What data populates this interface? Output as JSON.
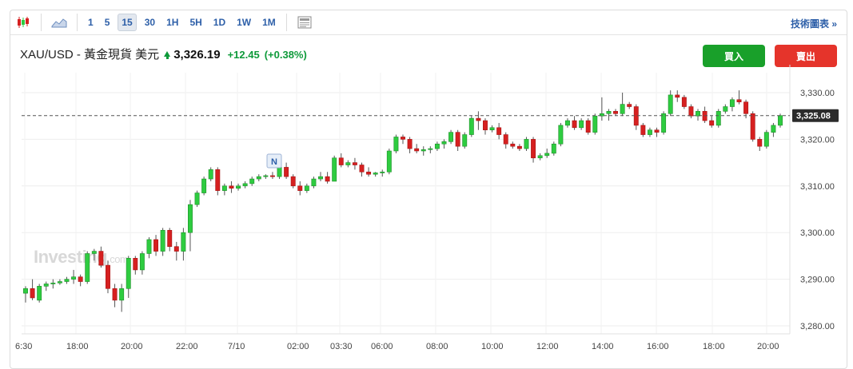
{
  "toolbar": {
    "icons": [
      "candlestick-icon",
      "area-chart-icon",
      "news-panel-icon"
    ],
    "timeframes": [
      "1",
      "5",
      "15",
      "30",
      "1H",
      "5H",
      "1D",
      "1W",
      "1M"
    ],
    "active_timeframe": "15",
    "tech_link": "技術圖表 »"
  },
  "quote": {
    "name": "XAU/USD - 黃金現貨 美元",
    "direction_icon": "up-arrow-icon",
    "price": "3,326.19",
    "change": "+12.45",
    "change_pct": "(+0.38%)",
    "color_up": "#0e9a3a"
  },
  "buttons": {
    "buy": "買入",
    "sell": "賣出"
  },
  "watermark": {
    "brand": "Investing",
    "suffix": ".com"
  },
  "event_marker": "N",
  "chart_data": {
    "type": "candlestick",
    "y_ticks": [
      "3,330.00",
      "3,320.00",
      "3,310.00",
      "3,300.00",
      "3,290.00",
      "3,280.00"
    ],
    "x_ticks": [
      "6:30",
      "18:00",
      "20:00",
      "22:00",
      "7/10",
      "02:00",
      "03:30",
      "06:00",
      "08:00",
      "10:00",
      "12:00",
      "14:00",
      "16:00",
      "18:00",
      "20:00"
    ],
    "ylim": [
      3278,
      3335
    ],
    "current_price_label": "3,325.08",
    "current_price": 3325.08,
    "grid": true,
    "colors": {
      "up": "#2ecc40",
      "down": "#d62020"
    },
    "candles": [
      [
        3287.0,
        3288.5,
        3285.0,
        3288.0
      ],
      [
        3288.0,
        3290.0,
        3285.5,
        3286.0
      ],
      [
        3285.5,
        3289.0,
        3285.0,
        3288.5
      ],
      [
        3288.5,
        3289.5,
        3287.5,
        3289.0
      ],
      [
        3289.0,
        3290.0,
        3288.0,
        3289.2
      ],
      [
        3289.2,
        3290.0,
        3288.8,
        3289.5
      ],
      [
        3289.5,
        3290.5,
        3289.0,
        3290.0
      ],
      [
        3290.0,
        3292.0,
        3289.0,
        3290.5
      ],
      [
        3290.5,
        3291.0,
        3288.5,
        3289.5
      ],
      [
        3289.5,
        3296.0,
        3289.0,
        3295.5
      ],
      [
        3295.5,
        3296.5,
        3294.0,
        3296.0
      ],
      [
        3296.0,
        3297.0,
        3292.5,
        3293.0
      ],
      [
        3293.0,
        3294.0,
        3287.0,
        3288.0
      ],
      [
        3288.0,
        3289.0,
        3284.0,
        3285.5
      ],
      [
        3285.5,
        3289.0,
        3283.0,
        3288.0
      ],
      [
        3288.0,
        3295.0,
        3286.0,
        3294.5
      ],
      [
        3294.5,
        3295.0,
        3291.0,
        3292.0
      ],
      [
        3292.0,
        3296.0,
        3291.0,
        3295.5
      ],
      [
        3295.5,
        3299.0,
        3294.5,
        3298.5
      ],
      [
        3298.5,
        3299.5,
        3295.0,
        3296.0
      ],
      [
        3296.0,
        3301.0,
        3295.0,
        3300.5
      ],
      [
        3300.5,
        3301.0,
        3296.0,
        3297.0
      ],
      [
        3297.0,
        3298.0,
        3294.0,
        3296.0
      ],
      [
        3296.0,
        3301.0,
        3294.0,
        3300.0
      ],
      [
        3300.0,
        3307.0,
        3296.0,
        3306.0
      ],
      [
        3306.0,
        3309.0,
        3305.5,
        3308.5
      ],
      [
        3308.5,
        3312.0,
        3308.0,
        3311.5
      ],
      [
        3311.5,
        3314.0,
        3311.0,
        3313.5
      ],
      [
        3313.5,
        3314.0,
        3308.0,
        3309.0
      ],
      [
        3309.0,
        3310.5,
        3308.0,
        3310.0
      ],
      [
        3310.0,
        3311.0,
        3308.5,
        3309.5
      ],
      [
        3309.5,
        3310.5,
        3309.0,
        3310.0
      ],
      [
        3310.0,
        3311.0,
        3309.5,
        3310.5
      ],
      [
        3310.5,
        3312.0,
        3310.0,
        3311.5
      ],
      [
        3311.5,
        3312.5,
        3311.0,
        3312.0
      ],
      [
        3312.0,
        3312.5,
        3311.5,
        3312.2
      ],
      [
        3312.2,
        3313.0,
        3311.5,
        3312.0
      ],
      [
        3312.0,
        3314.5,
        3311.5,
        3314.0
      ],
      [
        3314.0,
        3315.0,
        3311.5,
        3312.0
      ],
      [
        3312.0,
        3312.5,
        3309.5,
        3310.0
      ],
      [
        3310.0,
        3311.0,
        3308.0,
        3309.0
      ],
      [
        3309.0,
        3310.5,
        3308.5,
        3310.0
      ],
      [
        3310.0,
        3312.0,
        3309.5,
        3311.5
      ],
      [
        3311.5,
        3313.0,
        3311.0,
        3312.0
      ],
      [
        3312.0,
        3313.0,
        3310.5,
        3311.0
      ],
      [
        3311.0,
        3316.5,
        3311.0,
        3316.0
      ],
      [
        3316.0,
        3317.0,
        3314.0,
        3314.5
      ],
      [
        3314.5,
        3315.5,
        3314.0,
        3315.0
      ],
      [
        3315.0,
        3316.0,
        3313.5,
        3314.5
      ],
      [
        3314.5,
        3315.0,
        3312.0,
        3313.0
      ],
      [
        3313.0,
        3314.0,
        3312.0,
        3312.5
      ],
      [
        3312.5,
        3313.0,
        3312.0,
        3312.8
      ],
      [
        3312.8,
        3313.5,
        3312.0,
        3313.0
      ],
      [
        3313.0,
        3318.0,
        3312.5,
        3317.5
      ],
      [
        3317.5,
        3321.0,
        3317.0,
        3320.5
      ],
      [
        3320.5,
        3321.0,
        3319.0,
        3320.0
      ],
      [
        3320.0,
        3320.5,
        3317.0,
        3318.0
      ],
      [
        3318.0,
        3319.0,
        3317.0,
        3317.5
      ],
      [
        3317.5,
        3318.5,
        3316.5,
        3317.8
      ],
      [
        3317.8,
        3318.5,
        3317.0,
        3318.0
      ],
      [
        3318.0,
        3319.5,
        3317.5,
        3319.0
      ],
      [
        3319.0,
        3320.0,
        3318.0,
        3319.5
      ],
      [
        3319.5,
        3322.0,
        3319.0,
        3321.5
      ],
      [
        3321.5,
        3322.0,
        3317.5,
        3318.5
      ],
      [
        3318.5,
        3321.5,
        3318.0,
        3321.0
      ],
      [
        3321.0,
        3325.0,
        3320.5,
        3324.5
      ],
      [
        3324.5,
        3326.0,
        3322.0,
        3324.0
      ],
      [
        3324.0,
        3324.5,
        3321.0,
        3322.0
      ],
      [
        3322.0,
        3323.0,
        3321.5,
        3322.5
      ],
      [
        3322.5,
        3323.5,
        3320.0,
        3321.0
      ],
      [
        3321.0,
        3321.5,
        3318.0,
        3319.0
      ],
      [
        3319.0,
        3319.5,
        3318.0,
        3318.5
      ],
      [
        3318.5,
        3319.0,
        3317.5,
        3318.0
      ],
      [
        3318.0,
        3320.5,
        3317.5,
        3320.0
      ],
      [
        3320.0,
        3320.5,
        3315.0,
        3316.0
      ],
      [
        3316.0,
        3317.0,
        3315.5,
        3316.5
      ],
      [
        3316.5,
        3318.0,
        3316.0,
        3317.0
      ],
      [
        3317.0,
        3319.5,
        3316.5,
        3319.0
      ],
      [
        3319.0,
        3323.5,
        3318.5,
        3323.0
      ],
      [
        3323.0,
        3324.5,
        3322.5,
        3324.0
      ],
      [
        3324.0,
        3325.0,
        3322.0,
        3322.5
      ],
      [
        3322.5,
        3324.5,
        3322.0,
        3324.0
      ],
      [
        3324.0,
        3324.5,
        3321.0,
        3321.5
      ],
      [
        3321.5,
        3325.5,
        3321.0,
        3325.0
      ],
      [
        3325.0,
        3329.0,
        3324.0,
        3325.5
      ],
      [
        3325.5,
        3326.5,
        3324.0,
        3326.0
      ],
      [
        3326.0,
        3326.5,
        3325.0,
        3325.5
      ],
      [
        3325.5,
        3330.0,
        3325.0,
        3327.5
      ],
      [
        3327.5,
        3328.0,
        3326.5,
        3327.0
      ],
      [
        3327.0,
        3327.5,
        3322.0,
        3323.0
      ],
      [
        3323.0,
        3323.5,
        3320.5,
        3321.0
      ],
      [
        3321.0,
        3322.5,
        3320.5,
        3322.0
      ],
      [
        3322.0,
        3322.5,
        3320.5,
        3321.5
      ],
      [
        3321.5,
        3326.0,
        3321.0,
        3325.5
      ],
      [
        3325.5,
        3330.5,
        3325.0,
        3329.5
      ],
      [
        3329.5,
        3330.5,
        3328.0,
        3329.0
      ],
      [
        3329.0,
        3329.5,
        3326.5,
        3327.0
      ],
      [
        3327.0,
        3327.5,
        3324.5,
        3325.0
      ],
      [
        3325.0,
        3326.5,
        3324.0,
        3326.0
      ],
      [
        3326.0,
        3327.0,
        3323.5,
        3324.0
      ],
      [
        3324.0,
        3325.0,
        3322.5,
        3323.0
      ],
      [
        3323.0,
        3326.5,
        3322.5,
        3326.0
      ],
      [
        3326.0,
        3327.5,
        3325.5,
        3327.0
      ],
      [
        3327.0,
        3329.0,
        3326.0,
        3328.5
      ],
      [
        3328.5,
        3330.5,
        3327.5,
        3328.0
      ],
      [
        3328.0,
        3328.5,
        3324.5,
        3325.5
      ],
      [
        3325.5,
        3326.0,
        3319.5,
        3320.0
      ],
      [
        3320.0,
        3320.5,
        3317.5,
        3318.5
      ],
      [
        3318.5,
        3322.0,
        3318.0,
        3321.5
      ],
      [
        3321.5,
        3323.5,
        3320.5,
        3323.0
      ],
      [
        3323.0,
        3325.5,
        3322.5,
        3325.08
      ]
    ]
  }
}
